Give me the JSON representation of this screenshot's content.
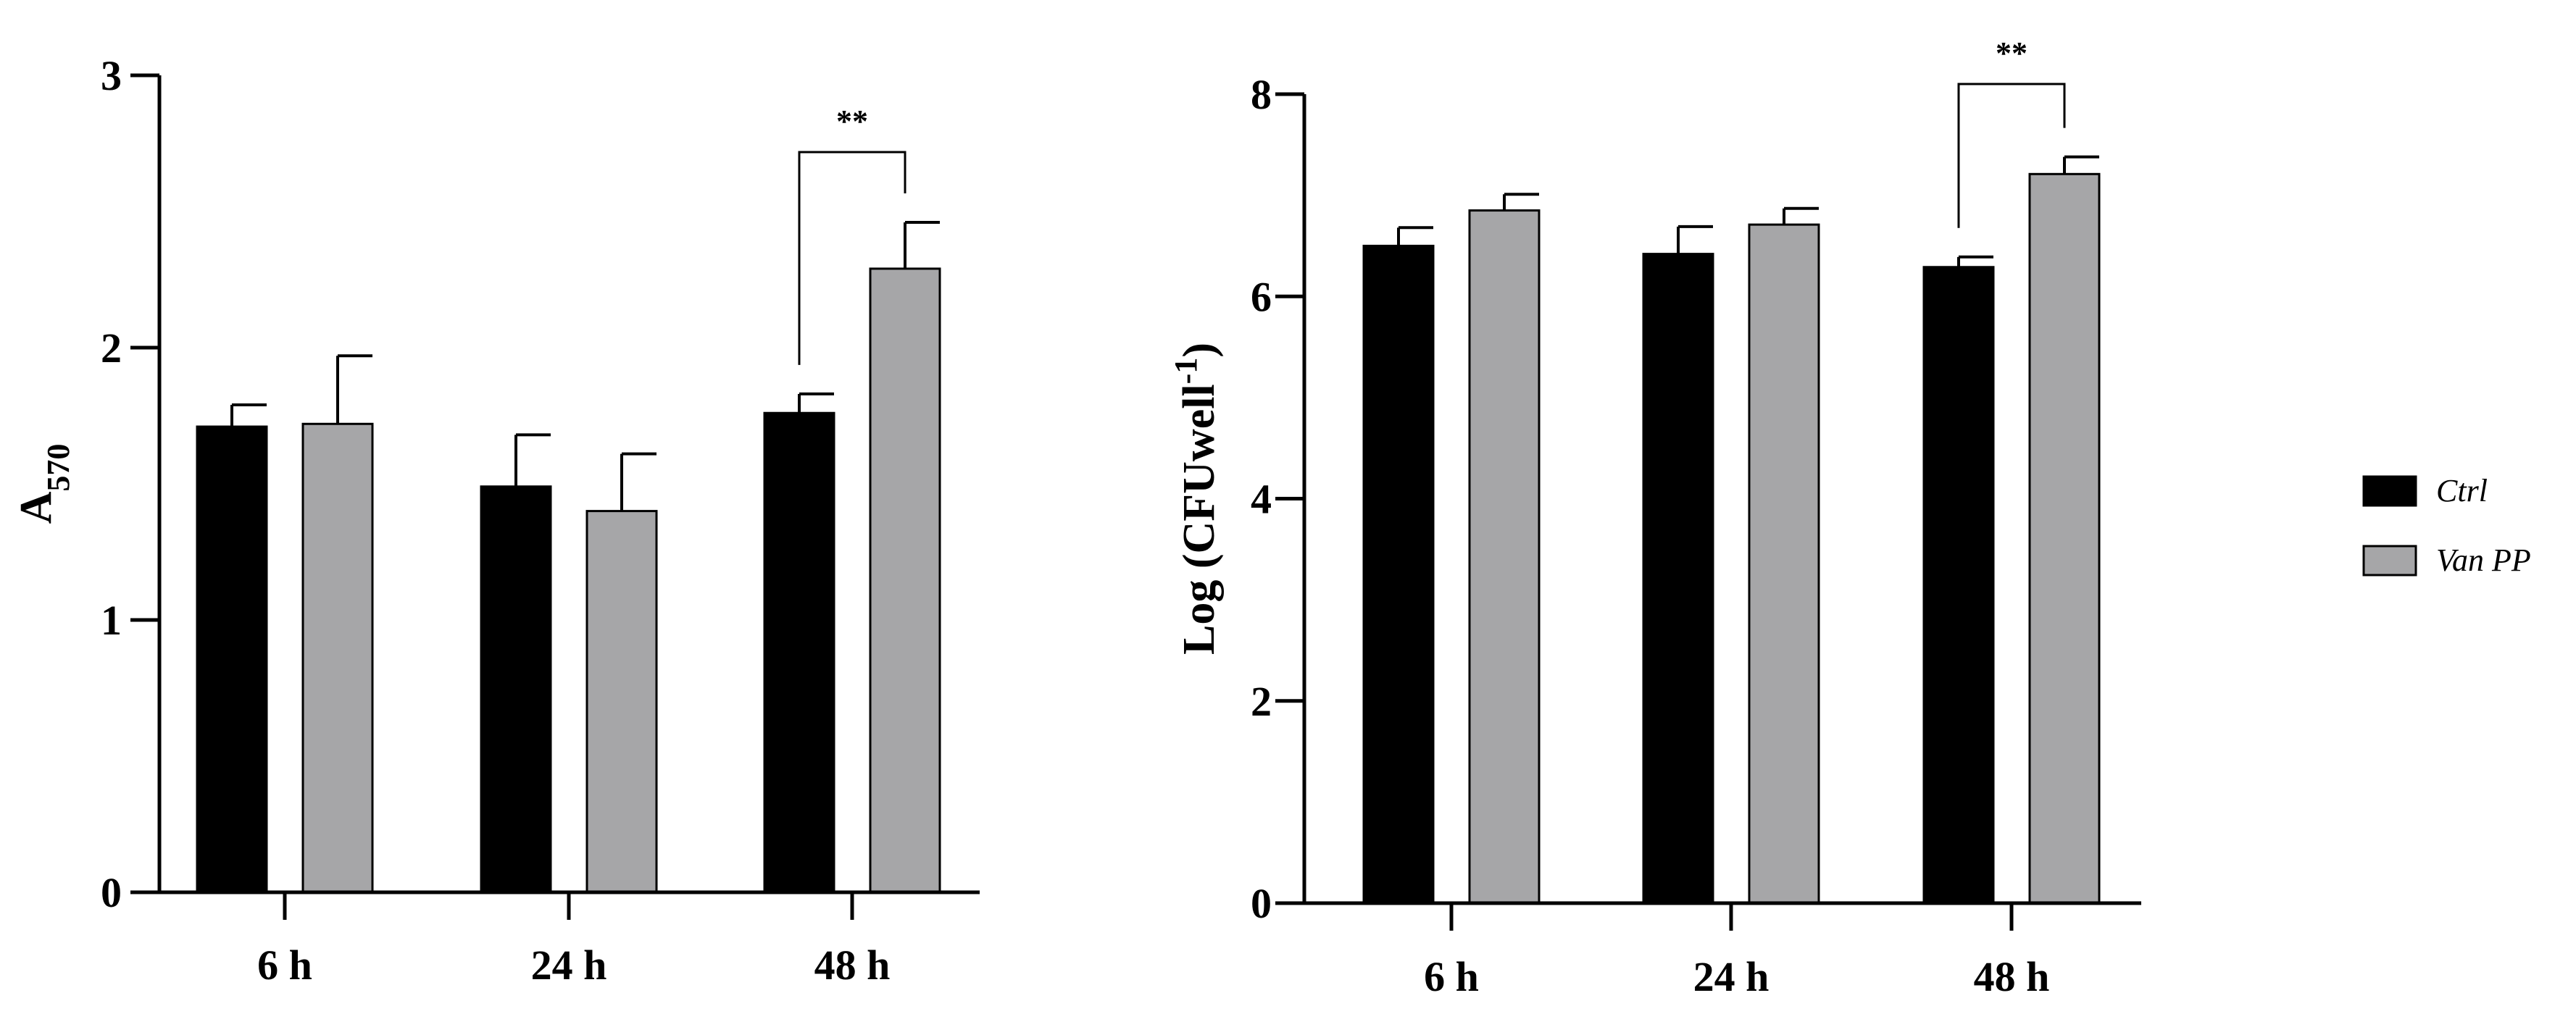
{
  "colors": {
    "Ctrl": "#000000",
    "Van PP": "#a6a6a8",
    "bar_outline": "#000000",
    "axis": "#000000",
    "background": "#ffffff"
  },
  "legend": {
    "placement": "right",
    "items": [
      {
        "label": "Ctrl",
        "color": "#000000"
      },
      {
        "label": "Van PP",
        "color": "#a6a6a8"
      }
    ]
  },
  "chart_data": [
    {
      "type": "bar",
      "categories": [
        "6 h",
        "24 h",
        "48 h"
      ],
      "ylabel": "A",
      "ylabel_subscript": "570",
      "ylim": [
        0,
        3
      ],
      "yticks": [
        0,
        1,
        2,
        3
      ],
      "series": [
        {
          "name": "Ctrl",
          "values": [
            1.71,
            1.49,
            1.76
          ],
          "errors": [
            0.08,
            0.19,
            0.07
          ]
        },
        {
          "name": "Van PP",
          "values": [
            1.72,
            1.4,
            2.29
          ],
          "errors": [
            0.25,
            0.21,
            0.17
          ]
        }
      ],
      "significance": [
        {
          "category": "48 h",
          "label": "**"
        }
      ],
      "grid": false
    },
    {
      "type": "bar",
      "categories": [
        "6 h",
        "24 h",
        "48 h"
      ],
      "ylabel": "Log (CFUwell",
      "ylabel_superscript": "-1",
      "ylabel_close": ")",
      "ylim": [
        0,
        8
      ],
      "yticks": [
        0,
        2,
        4,
        6,
        8
      ],
      "series": [
        {
          "name": "Ctrl",
          "values": [
            6.5,
            6.42,
            6.29
          ],
          "errors": [
            0.18,
            0.27,
            0.1
          ]
        },
        {
          "name": "Van PP",
          "values": [
            6.85,
            6.71,
            7.21
          ],
          "errors": [
            0.16,
            0.16,
            0.17
          ]
        }
      ],
      "significance": [
        {
          "category": "48 h",
          "label": "**"
        }
      ],
      "grid": false
    }
  ]
}
